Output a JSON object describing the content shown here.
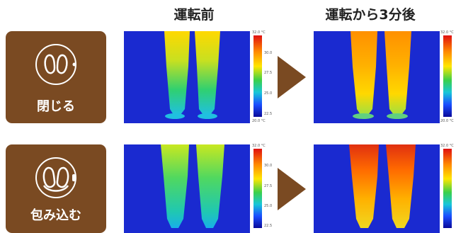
{
  "columns": {
    "before": "運転前",
    "after": "運転から3分後"
  },
  "modes": [
    {
      "label": "閉じる",
      "icon": "closed-legs-icon"
    },
    {
      "label": "包み込む",
      "icon": "wrapping-legs-icon"
    }
  ],
  "scale_ticks": [
    "32.0 °C",
    "30.0",
    "27.5",
    "25.0",
    "22.5",
    "20.0 °C"
  ],
  "colors": {
    "brand_brown": "#7a4a22",
    "thermal_background": "#1a2ad0"
  }
}
